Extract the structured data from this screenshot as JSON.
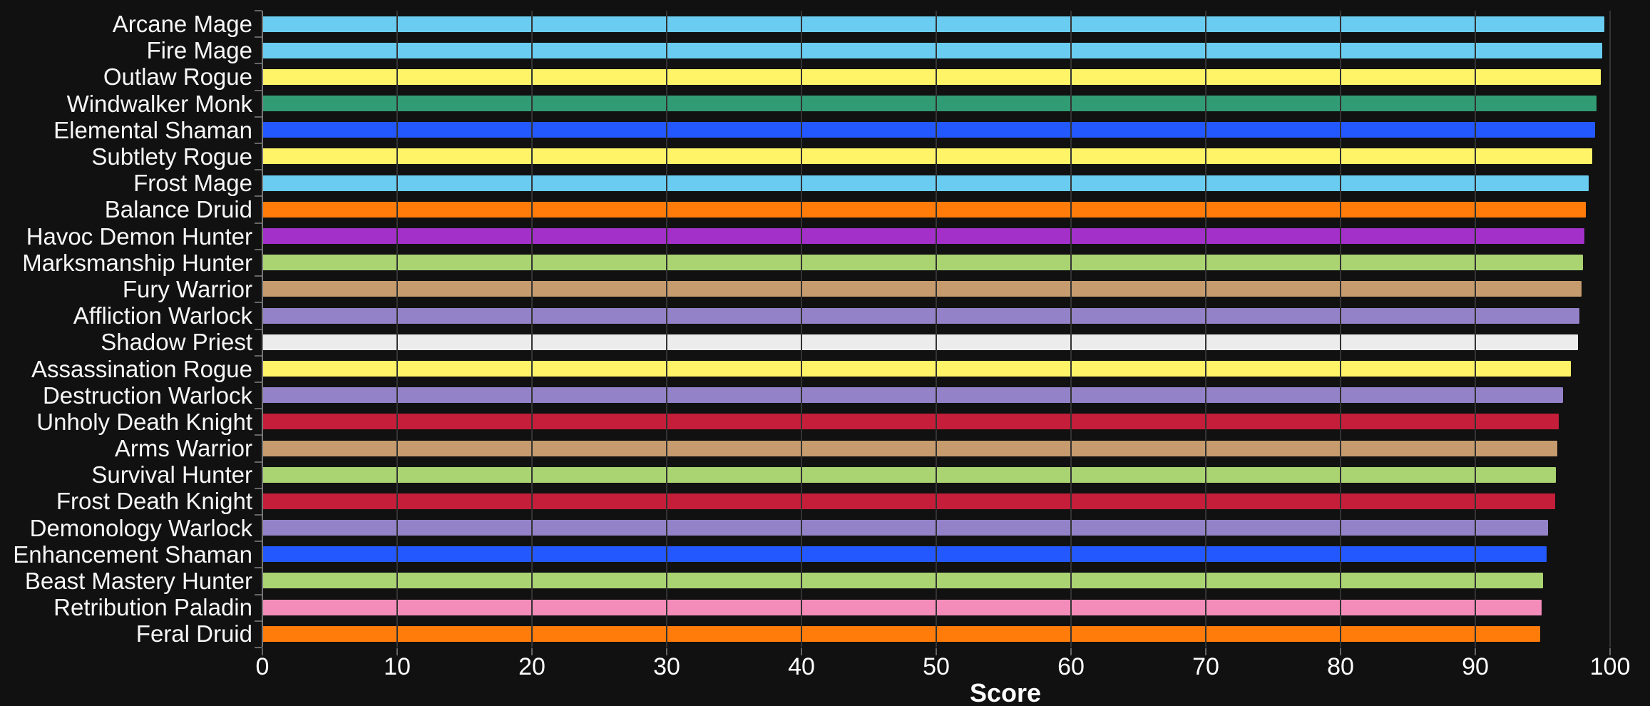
{
  "chart_data": {
    "type": "bar",
    "orientation": "horizontal",
    "title": "",
    "xlabel": "Score",
    "ylabel": "",
    "xlim": [
      0,
      100
    ],
    "xticks": [
      "0",
      "10",
      "20",
      "30",
      "40",
      "50",
      "60",
      "70",
      "80",
      "90",
      "100"
    ],
    "grid": "vertical-gridlines-on",
    "legend": "none",
    "categories": [
      "Arcane Mage",
      "Fire Mage",
      "Outlaw Rogue",
      "Windwalker Monk",
      "Elemental Shaman",
      "Subtlety Rogue",
      "Frost Mage",
      "Balance Druid",
      "Havoc Demon Hunter",
      "Marksmanship Hunter",
      "Fury Warrior",
      "Affliction Warlock",
      "Shadow Priest",
      "Assassination Rogue",
      "Destruction Warlock",
      "Unholy Death Knight",
      "Arms Warrior",
      "Survival Hunter",
      "Frost Death Knight",
      "Demonology Warlock",
      "Enhancement Shaman",
      "Beast Mastery Hunter",
      "Retribution Paladin",
      "Feral Druid"
    ],
    "values": [
      99.6,
      99.4,
      99.3,
      99.0,
      98.9,
      98.7,
      98.4,
      98.2,
      98.1,
      98.0,
      97.9,
      97.7,
      97.6,
      97.1,
      96.5,
      96.2,
      96.1,
      96.0,
      95.9,
      95.4,
      95.3,
      95.0,
      94.9,
      94.8
    ],
    "colors": [
      "#69CCF0",
      "#69CCF0",
      "#FFF468",
      "#319C74",
      "#2458FF",
      "#FFF468",
      "#69CCF0",
      "#FF7C0A",
      "#A330C9",
      "#AAD372",
      "#C69B6D",
      "#9482C9",
      "#ECECEC",
      "#FFF468",
      "#9482C9",
      "#C41E3A",
      "#C69B6D",
      "#AAD372",
      "#C41E3A",
      "#9482C9",
      "#2458FF",
      "#AAD372",
      "#F48CBA",
      "#FF7C0A"
    ],
    "styles": {
      "background": "#111111",
      "category_label_color": "#F7F7F7",
      "tick_label_color": "#FFFFFF",
      "axis_title_color": "#FFFFFF",
      "gridline_color": "#333333",
      "axis_line_color": "#777777",
      "tick_mark_color": "#666666"
    }
  }
}
